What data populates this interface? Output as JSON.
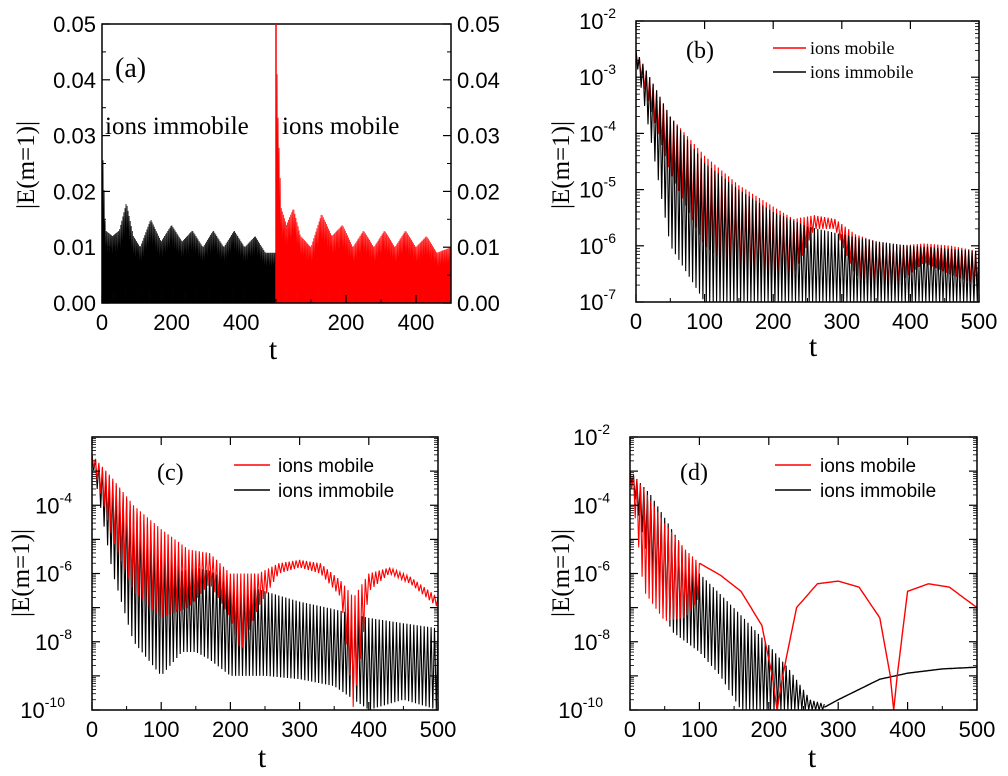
{
  "chart_data": [
    {
      "type": "line",
      "panel": "(a)",
      "panel_label": "(a)",
      "xlabel": "t",
      "ylabel": "|E(m=1)|",
      "y_scale": "linear",
      "ylim": [
        0,
        0.05
      ],
      "y_ticks": [
        "0.00",
        "0.01",
        "0.02",
        "0.03",
        "0.04",
        "0.05"
      ],
      "right_y_ticks": [
        "0.00",
        "0.01",
        "0.02",
        "0.03",
        "0.04",
        "0.05"
      ],
      "x_ticks_left": [
        "0",
        "200",
        "400"
      ],
      "x_ticks_right": [
        "200",
        "400"
      ],
      "annotations": [
        "ions immobile",
        "ions mobile"
      ],
      "series": [
        {
          "name": "ions immobile",
          "color": "#000000",
          "xlim": [
            0,
            500
          ],
          "x": [
            0,
            10,
            30,
            50,
            70,
            90,
            110,
            140,
            170,
            200,
            230,
            260,
            290,
            320,
            350,
            380,
            410,
            440,
            470,
            500
          ],
          "upper": [
            0.031,
            0.013,
            0.012,
            0.013,
            0.018,
            0.012,
            0.01,
            0.015,
            0.011,
            0.014,
            0.011,
            0.013,
            0.01,
            0.013,
            0.01,
            0.013,
            0.01,
            0.012,
            0.009,
            0.009
          ],
          "lower": 0.0
        },
        {
          "name": "ions mobile",
          "color": "#ff0000",
          "xlim": [
            0,
            500
          ],
          "x": [
            0,
            5,
            15,
            30,
            50,
            70,
            100,
            130,
            160,
            190,
            220,
            250,
            280,
            310,
            340,
            370,
            400,
            430,
            460,
            500
          ],
          "upper": [
            0.05,
            0.035,
            0.017,
            0.014,
            0.017,
            0.012,
            0.01,
            0.016,
            0.012,
            0.014,
            0.01,
            0.013,
            0.01,
            0.013,
            0.01,
            0.013,
            0.01,
            0.012,
            0.009,
            0.01
          ],
          "lower": 0.0
        }
      ]
    },
    {
      "type": "line",
      "panel": "(b)",
      "panel_label": "(b)",
      "xlabel": "t",
      "ylabel": "|E(m=1)|",
      "y_scale": "log",
      "xlim": [
        0,
        500
      ],
      "ylim": [
        1e-07,
        0.01
      ],
      "x_ticks": [
        "0",
        "100",
        "200",
        "300",
        "400",
        "500"
      ],
      "y_tick_exponents": [
        "-7",
        "-6",
        "-5",
        "-4",
        "-3",
        "-2"
      ],
      "legend": [
        "ions mobile",
        "ions immobile"
      ],
      "series": [
        {
          "name": "ions mobile",
          "color": "#ff0000",
          "x": [
            0,
            20,
            50,
            100,
            150,
            200,
            230,
            260,
            290,
            320,
            350,
            380,
            420,
            460,
            500
          ],
          "upper": [
            0.003,
            0.001,
            0.0002,
            4e-05,
            1.2e-05,
            5e-06,
            3e-06,
            3.5e-06,
            3e-06,
            1.6e-06,
            1.2e-06,
            1e-06,
            1.1e-06,
            1e-06,
            8e-07
          ],
          "lower": [
            0.002,
            0.0003,
            2e-05,
            1e-06,
            3e-07,
            2e-07,
            3e-07,
            2e-06,
            2e-06,
            3e-07,
            2e-07,
            2e-07,
            5e-07,
            3e-07,
            2e-07
          ]
        },
        {
          "name": "ions immobile",
          "color": "#000000",
          "x": [
            0,
            20,
            50,
            100,
            150,
            200,
            250,
            300,
            350,
            400,
            450,
            500
          ],
          "upper": [
            0.003,
            0.001,
            0.0002,
            3e-05,
            1e-05,
            4e-06,
            2.2e-06,
            1.6e-06,
            1.2e-06,
            1e-06,
            9e-07,
            8e-07
          ],
          "lower": [
            0.002,
            0.0001,
            1e-06,
            1e-07,
            1e-07,
            1e-07,
            1e-07,
            1e-07,
            1e-07,
            1e-07,
            1e-07,
            1e-07
          ]
        }
      ]
    },
    {
      "type": "line",
      "panel": "(c)",
      "panel_label": "(c)",
      "xlabel": "t",
      "ylabel": "|E(m=1)|",
      "y_scale": "log",
      "xlim": [
        0,
        500
      ],
      "ylim": [
        1e-10,
        0.01
      ],
      "x_ticks": [
        "0",
        "100",
        "200",
        "300",
        "400",
        "500"
      ],
      "y_tick_exponents": [
        "-10",
        "-8",
        "-6",
        "-4"
      ],
      "legend": [
        "ions mobile",
        "ions immobile"
      ],
      "series": [
        {
          "name": "ions mobile",
          "color": "#ff0000",
          "x": [
            0,
            30,
            60,
            100,
            140,
            170,
            200,
            215,
            240,
            270,
            300,
            330,
            360,
            378,
            400,
            430,
            460,
            500
          ],
          "upper": [
            0.003,
            0.0006,
            0.0001,
            2e-05,
            5e-06,
            4e-06,
            1e-06,
            1e-06,
            1e-06,
            2e-06,
            2.5e-06,
            2e-06,
            6e-07,
            2e-07,
            1e-06,
            1.5e-06,
            8e-07,
            2e-07
          ],
          "lower": [
            0.002,
            1e-05,
            3e-07,
            5e-08,
            1e-07,
            5e-07,
            5e-08,
            5e-09,
            1e-07,
            1e-06,
            1.5e-06,
            1e-06,
            2e-07,
            1e-10,
            3e-07,
            1e-06,
            5e-07,
            1e-07
          ]
        },
        {
          "name": "ions immobile",
          "color": "#000000",
          "x": [
            0,
            30,
            60,
            100,
            130,
            150,
            170,
            200,
            250,
            300,
            350,
            400,
            450,
            500
          ],
          "upper": [
            0.003,
            0.0005,
            8e-05,
            1e-05,
            1.2e-06,
            1.5e-06,
            1.2e-06,
            6e-07,
            3e-07,
            1.5e-07,
            9e-08,
            5e-08,
            3.5e-08,
            2.5e-08
          ],
          "lower": [
            0.002,
            1e-06,
            1e-08,
            1e-09,
            5e-09,
            5e-09,
            3e-09,
            1e-09,
            1e-09,
            8e-10,
            5e-10,
            1e-10,
            2e-10,
            1e-10
          ]
        }
      ]
    },
    {
      "type": "line",
      "panel": "(d)",
      "panel_label": "(d)",
      "xlabel": "t",
      "ylabel": "|E(m=1)|",
      "y_scale": "log",
      "xlim": [
        0,
        500
      ],
      "ylim": [
        1e-10,
        0.01
      ],
      "x_ticks": [
        "0",
        "100",
        "200",
        "300",
        "400",
        "500"
      ],
      "y_tick_exponents": [
        "-10",
        "-8",
        "-6",
        "-4",
        "-2"
      ],
      "legend": [
        "ions mobile",
        "ions immobile"
      ],
      "series": [
        {
          "name": "ions mobile",
          "color": "#ff0000",
          "x": [
            0,
            20,
            50,
            80,
            100
          ],
          "upper": [
            0.001,
            0.0003,
            3e-05,
            5e-06,
            2e-06
          ],
          "lower": [
            0.0008,
            3e-07,
            4e-08,
            5e-08,
            2e-07
          ],
          "smooth_x": [
            100,
            130,
            160,
            190,
            205,
            212,
            220,
            240,
            270,
            300,
            330,
            360,
            375,
            380,
            385,
            400,
            430,
            460,
            500
          ],
          "smooth_y": [
            2e-06,
            9e-07,
            3e-07,
            3e-08,
            1e-09,
            1e-10,
            1e-09,
            1e-07,
            5e-07,
            6e-07,
            4e-07,
            5e-08,
            1e-09,
            1e-10,
            1e-09,
            3e-07,
            5e-07,
            4e-07,
            1e-07
          ]
        },
        {
          "name": "ions immobile",
          "color": "#000000",
          "x": [
            0,
            30,
            60,
            100,
            130,
            160,
            200,
            230,
            260,
            280
          ],
          "upper": [
            0.001,
            0.0002,
            2e-05,
            1e-06,
            2.5e-07,
            6e-08,
            8e-09,
            1.5e-09,
            2e-10,
            1.5e-10
          ],
          "lower": [
            0.0008,
            1e-06,
            2e-08,
            5e-09,
            1e-09,
            1e-10,
            1e-10,
            1e-10,
            1e-10,
            1e-10
          ],
          "smooth_x": [
            280,
            300,
            330,
            360,
            400,
            450,
            500
          ],
          "smooth_y": [
            1.2e-10,
            2e-10,
            4e-10,
            8e-10,
            1.2e-09,
            1.6e-09,
            1.8e-09
          ]
        }
      ]
    }
  ]
}
